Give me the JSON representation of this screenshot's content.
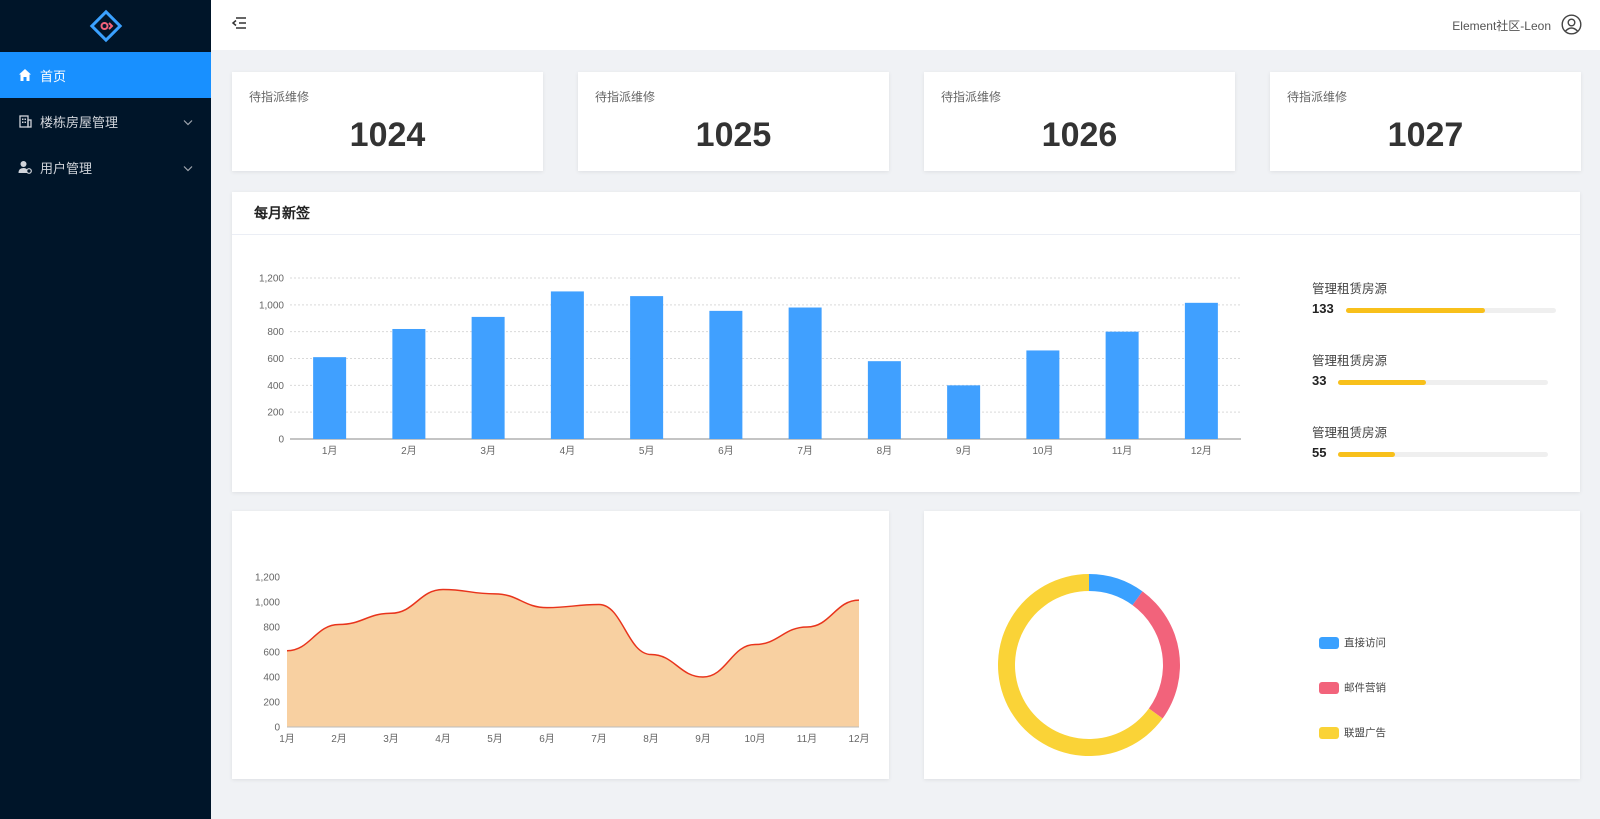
{
  "sidebar": {
    "logo_icon": "diamond-logo-icon",
    "items": [
      {
        "label": "首页",
        "icon": "home-icon",
        "active": true
      },
      {
        "label": "楼栋房屋管理",
        "icon": "building-icon",
        "has_submenu": true
      },
      {
        "label": "用户管理",
        "icon": "user-manage-icon",
        "has_submenu": true
      }
    ]
  },
  "header": {
    "fold_icon": "menu-fold-icon",
    "user_name": "Element社区-Leon",
    "user_icon": "user-circle-icon"
  },
  "stats": [
    {
      "label": "待指派维修",
      "value": "1024"
    },
    {
      "label": "待指派维修",
      "value": "1025"
    },
    {
      "label": "待指派维修",
      "value": "1026"
    },
    {
      "label": "待指派维修",
      "value": "1027"
    }
  ],
  "monthly": {
    "title": "每月新签",
    "progress": [
      {
        "label": "管理租赁房源",
        "value": "133",
        "fraction": 0.66
      },
      {
        "label": "管理租赁房源",
        "value": "33",
        "fraction": 0.42
      },
      {
        "label": "管理租赁房源",
        "value": "55",
        "fraction": 0.27
      }
    ]
  },
  "colors": {
    "primary": "#1890ff",
    "bar": "#40a0ff",
    "area_fill": "#f8d0a1",
    "area_line": "#e8341c",
    "progress": "#f8c01b",
    "sidebar_bg": "#001529"
  },
  "chart_data": [
    {
      "type": "bar",
      "categories": [
        "1月",
        "2月",
        "3月",
        "4月",
        "5月",
        "6月",
        "7月",
        "8月",
        "9月",
        "10月",
        "11月",
        "12月"
      ],
      "values": [
        610,
        820,
        910,
        1100,
        1065,
        955,
        980,
        580,
        400,
        660,
        800,
        1015
      ],
      "yticks": [
        "0",
        "200",
        "400",
        "600",
        "800",
        "1,000",
        "1,200"
      ],
      "ylim": [
        0,
        1200
      ],
      "grid": true,
      "color": "#40a0ff"
    },
    {
      "type": "area",
      "categories": [
        "1月",
        "2月",
        "3月",
        "4月",
        "5月",
        "6月",
        "7月",
        "8月",
        "9月",
        "10月",
        "11月",
        "12月"
      ],
      "values": [
        610,
        820,
        910,
        1100,
        1065,
        955,
        980,
        580,
        400,
        660,
        800,
        1015
      ],
      "yticks": [
        "0",
        "200",
        "400",
        "600",
        "800",
        "1,000",
        "1,200"
      ],
      "ylim": [
        0,
        1200
      ],
      "grid": false,
      "fill_color": "#f8d0a1",
      "line_color": "#e8341c"
    },
    {
      "type": "pie",
      "donut": true,
      "slices": [
        {
          "name": "直接访问",
          "value": 10,
          "color": "#3aa1ff"
        },
        {
          "name": "邮件营销",
          "value": 25,
          "color": "#f2637b"
        },
        {
          "name": "联盟广告",
          "value": 65,
          "color": "#fad337"
        }
      ],
      "legend_position": "right"
    }
  ]
}
